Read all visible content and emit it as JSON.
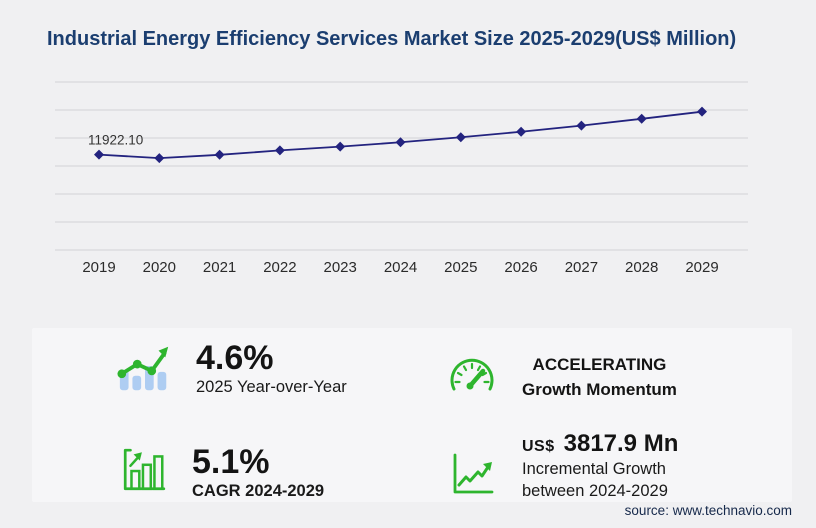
{
  "title": "Industrial Energy Efficiency Services Market Size 2025-2029(US$ Million)",
  "source": "source: www.technavio.com",
  "colors": {
    "title_navy": "#1b3e70",
    "line_navy": "#23237f",
    "grid": "#d8d8db",
    "axis_label": "#2b2b2b",
    "point_label": "#333333",
    "green": "#2eb52e",
    "bar_blue": "#aecdf2",
    "page_bg": "#f0f0f2",
    "panel_bg": "#f6f6f8"
  },
  "chart_data": {
    "type": "line",
    "categories": [
      "2019",
      "2020",
      "2021",
      "2022",
      "2023",
      "2024",
      "2025",
      "2026",
      "2027",
      "2028",
      "2029"
    ],
    "values": [
      11922.1,
      11480,
      11900,
      12450,
      12920,
      13470,
      14090,
      14780,
      15550,
      16400,
      17290
    ],
    "first_point_label": "11922.10",
    "title": "Industrial Energy Efficiency Services Market Size 2025-2029(US$ Million)",
    "xlabel": "",
    "ylabel": "",
    "ylim": [
      0,
      21000
    ],
    "grid": "horizontal",
    "gridline_count": 7,
    "legend": "none",
    "marker": "diamond"
  },
  "stats": [
    {
      "icon": "bar-chart-growth-icon",
      "value": "4.6%",
      "label": "2025 Year-over-Year"
    },
    {
      "icon": "speedometer-icon",
      "line1": "ACCELERATING",
      "line2": "Growth Momentum"
    },
    {
      "icon": "bar-chart-frame-icon",
      "value": "5.1%",
      "label": "CAGR 2024-2029"
    },
    {
      "icon": "line-growth-icon",
      "prefix": "US$",
      "value": "3817.9 Mn",
      "label_line1": "Incremental Growth",
      "label_line2": "between 2024-2029"
    }
  ]
}
